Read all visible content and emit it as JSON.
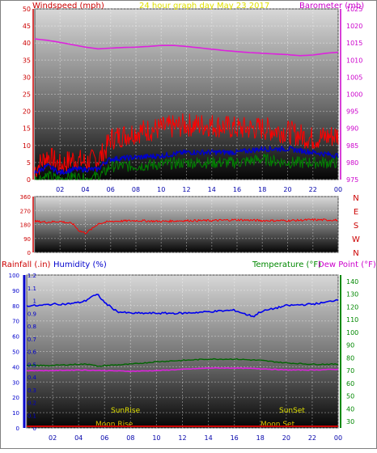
{
  "header": {
    "left_title": "Windspeed (mph)",
    "center_title": "24 hour graph day   May 23 2017",
    "right_title": "Barometer (mb)"
  },
  "colors": {
    "windspeed_title": "#cc0000",
    "barometer_title": "#cc00cc",
    "center_title": "#e0e000",
    "wind_high": "#ff0000",
    "wind_avg": "#0000cc",
    "wind_low": "#008000",
    "barometer_line": "#dd22dd",
    "direction_line": "#ff0000",
    "humidity_line": "#0000ee",
    "temperature_line": "#006600",
    "dewpoint_line": "#dd22dd",
    "rainfall_axis": "#cc0000",
    "humidity_axis": "#0000cc",
    "temperature_axis": "#008800",
    "sun_text": "#e0e000",
    "moon_text": "#e0c000"
  },
  "chart_data": [
    {
      "type": "line",
      "name": "wind-barometer",
      "x_ticks": [
        "02",
        "04",
        "06",
        "08",
        "10",
        "12",
        "14",
        "16",
        "18",
        "20",
        "22",
        "00"
      ],
      "xlim": [
        0,
        24
      ],
      "y_left_ticks": [
        "0",
        "5",
        "10",
        "15",
        "20",
        "25",
        "30",
        "35",
        "40",
        "45",
        "50"
      ],
      "ylim_left": [
        0,
        50
      ],
      "y_right_ticks": [
        "975",
        "980",
        "985",
        "990",
        "995",
        "1000",
        "1005",
        "1010",
        "1015",
        "1020",
        "1025"
      ],
      "ylim_right": [
        975,
        1025
      ],
      "barometer": {
        "x": [
          0,
          1,
          2,
          3,
          4,
          5,
          6,
          7,
          8,
          9,
          10,
          11,
          12,
          13,
          14,
          15,
          16,
          17,
          18,
          19,
          20,
          21,
          22,
          23,
          24
        ],
        "values": [
          1016.2,
          1015.8,
          1015.2,
          1014.5,
          1013.8,
          1013.3,
          1013.5,
          1013.7,
          1013.8,
          1014.0,
          1014.3,
          1014.3,
          1014.0,
          1013.6,
          1013.2,
          1012.8,
          1012.5,
          1012.2,
          1012.0,
          1011.8,
          1011.6,
          1011.3,
          1011.5,
          1012.0,
          1012.3
        ]
      },
      "wind_high": {
        "x": [
          0,
          1,
          2,
          3,
          4,
          5,
          5.5,
          6,
          8,
          10,
          12,
          14,
          16,
          18,
          20,
          22,
          24
        ],
        "values": [
          3,
          7,
          4,
          6,
          5,
          6,
          8,
          12,
          14,
          15,
          16,
          16,
          15,
          15,
          14,
          12,
          13
        ]
      },
      "wind_avg": {
        "x": [
          0,
          1,
          2,
          3,
          4,
          5,
          5.5,
          6,
          8,
          10,
          12,
          14,
          16,
          18,
          20,
          22,
          24
        ],
        "values": [
          2,
          4,
          2,
          3,
          3,
          3,
          5,
          6,
          6.5,
          7,
          8,
          8,
          8,
          9,
          9,
          8,
          7
        ]
      },
      "wind_low": {
        "x": [
          0,
          1,
          2,
          3,
          4,
          5,
          5.5,
          6,
          8,
          10,
          12,
          14,
          16,
          18,
          20,
          22,
          24
        ],
        "values": [
          0,
          1,
          0,
          1,
          0,
          1,
          2,
          4,
          4,
          4.5,
          5,
          5,
          5,
          6,
          5,
          5,
          5
        ]
      }
    },
    {
      "type": "line",
      "name": "wind-direction",
      "xlim": [
        0,
        24
      ],
      "y_ticks": [
        "0",
        "90",
        "180",
        "270",
        "360"
      ],
      "ylim": [
        0,
        360
      ],
      "compass_labels": [
        "N",
        "W",
        "S",
        "E",
        "N"
      ],
      "series": {
        "x": [
          0,
          1,
          2,
          3,
          3.5,
          4,
          4.5,
          5,
          6,
          8,
          10,
          12,
          14,
          16,
          18,
          20,
          22,
          24
        ],
        "values": [
          200,
          195,
          200,
          185,
          140,
          125,
          150,
          185,
          200,
          205,
          200,
          205,
          205,
          210,
          205,
          205,
          210,
          208
        ]
      }
    },
    {
      "type": "line",
      "name": "humidity-temperature",
      "header": {
        "rainfall_label": "Rainfall (.in)",
        "humidity_label": "Humidity (%)",
        "temperature_label": "Temperature (°F)",
        "dewpoint_label": "Dew Point (°F)"
      },
      "x_ticks": [
        "02",
        "04",
        "06",
        "08",
        "10",
        "12",
        "14",
        "16",
        "18",
        "20",
        "22",
        "00"
      ],
      "xlim": [
        0,
        24
      ],
      "rain_ticks": [
        "0",
        "0.1",
        "0.2",
        "0.3",
        "0.4",
        "0.5",
        "0.6",
        "0.7",
        "0.8",
        "0.9",
        "1",
        "1.1",
        "1.2"
      ],
      "rain_lim": [
        0,
        1.2
      ],
      "humidity_ticks": [
        "0",
        "10",
        "20",
        "30",
        "40",
        "50",
        "60",
        "70",
        "80",
        "90",
        "100"
      ],
      "humidity_lim": [
        0,
        100
      ],
      "temp_ticks": [
        "30",
        "40",
        "50",
        "60",
        "70",
        "80",
        "90",
        "100",
        "110",
        "120",
        "130",
        "140"
      ],
      "temp_lim": [
        25,
        145
      ],
      "humidity": {
        "x": [
          0,
          1,
          2,
          3,
          4,
          4.5,
          5,
          5.5,
          6,
          6.5,
          7,
          8,
          10,
          12,
          14,
          16,
          17,
          17.5,
          18,
          19,
          20,
          22,
          23,
          24
        ],
        "values": [
          80,
          80,
          81,
          81,
          82,
          83,
          86,
          87,
          82,
          79,
          76,
          75,
          75,
          75,
          76,
          77,
          74,
          73,
          76,
          78,
          80,
          81,
          82,
          84
        ]
      },
      "temperature": {
        "x": [
          0,
          2,
          4,
          5,
          5.5,
          6,
          8,
          10,
          12,
          14,
          16,
          18,
          20,
          22,
          24
        ],
        "values": [
          74,
          74,
          75,
          75,
          73,
          74,
          75,
          77,
          78,
          79,
          79,
          78,
          76,
          75,
          75
        ]
      },
      "dewpoint": {
        "x": [
          0,
          2,
          4,
          6,
          8,
          10,
          12,
          14,
          16,
          18,
          20,
          22,
          24
        ],
        "values": [
          70,
          70,
          70.5,
          70,
          69.5,
          70,
          71,
          72,
          72,
          71.5,
          70.5,
          70.5,
          71
        ]
      },
      "annotations": {
        "sunrise": "SunRise",
        "sunset": "SunSet",
        "moonrise": "Moon Rise",
        "moonset": "Moon Set"
      }
    }
  ]
}
